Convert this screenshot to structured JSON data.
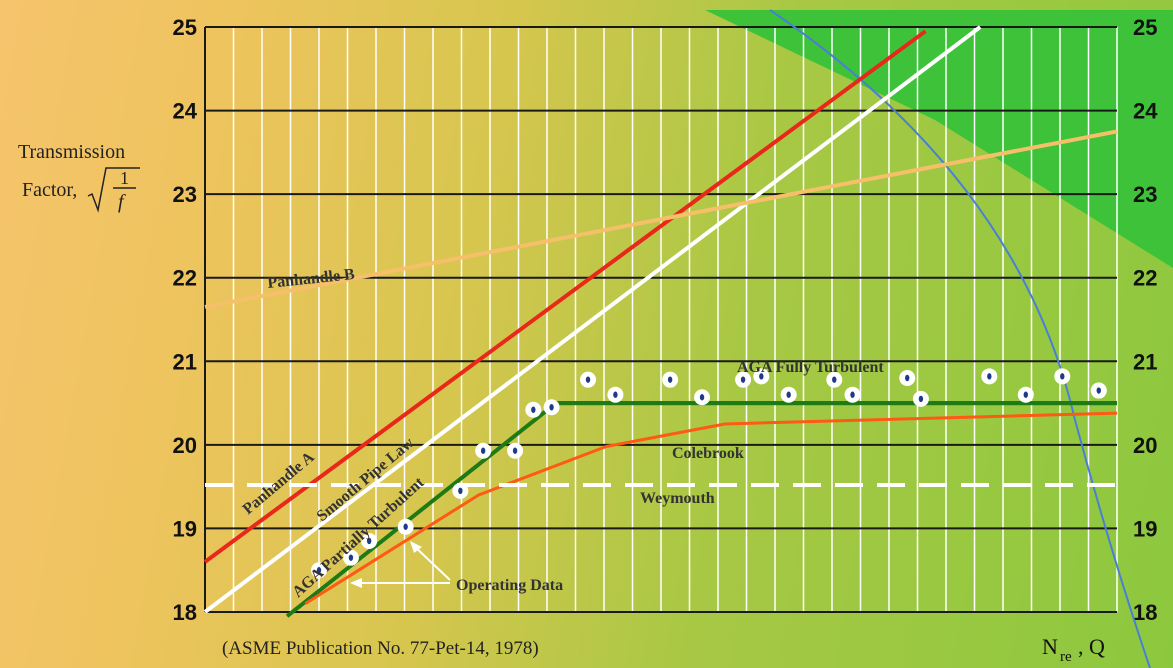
{
  "chart_data": {
    "type": "line",
    "title": "",
    "ylabel": "Transmission Factor, √(1/f)",
    "ylabel_parts": [
      "Transmission",
      "Factor,",
      "1",
      "f"
    ],
    "xlabel": "Nre, Q",
    "xlabel_parts": [
      "N",
      "re",
      ", Q"
    ],
    "source": "(ASME Publication No. 77-Pet-14, 1978)",
    "ylim": [
      18,
      25
    ],
    "xlim": [
      0,
      100
    ],
    "yticks": [
      "18",
      "19",
      "20",
      "21",
      "22",
      "23",
      "24",
      "25"
    ],
    "grid": true,
    "series": [
      {
        "name": "Panhandle A",
        "color": "#e8281a",
        "width": 4,
        "style": "solid",
        "points": [
          [
            0,
            18.6
          ],
          [
            79,
            24.95
          ]
        ]
      },
      {
        "name": "Smooth Pipe Law",
        "color": "#ffffff",
        "width": 4,
        "style": "solid",
        "points": [
          [
            0,
            18.0
          ],
          [
            85,
            25.0
          ]
        ]
      },
      {
        "name": "Panhandle B",
        "color": "#f6c06a",
        "width": 4,
        "style": "solid",
        "points": [
          [
            0,
            21.65
          ],
          [
            100,
            23.75
          ]
        ]
      },
      {
        "name": "AGA Partially Turbulent",
        "color": "#1e7a14",
        "width": 4,
        "style": "solid",
        "points": [
          [
            9,
            17.95
          ],
          [
            38.5,
            20.5
          ],
          [
            100,
            20.5
          ]
        ]
      },
      {
        "name": "AGA Fully Turbulent",
        "color": "#1e7a14",
        "width": 4,
        "style": "solid",
        "points": [
          [
            38.5,
            20.5
          ],
          [
            100,
            20.5
          ]
        ]
      },
      {
        "name": "Colebrook",
        "color": "#ff5a14",
        "width": 3,
        "style": "solid",
        "points": [
          [
            11,
            18.1
          ],
          [
            30,
            19.4
          ],
          [
            44,
            19.98
          ],
          [
            57,
            20.25
          ],
          [
            100,
            20.38
          ]
        ]
      },
      {
        "name": "Weymouth",
        "color": "#ffffff",
        "width": 4,
        "style": "dashed",
        "points": [
          [
            0,
            19.52
          ],
          [
            100,
            19.52
          ]
        ]
      }
    ],
    "operating_data": {
      "name": "Operating Data",
      "x": [
        12.5,
        16,
        18,
        22,
        28,
        30.5,
        34,
        36,
        38,
        42,
        45,
        51,
        54.5,
        59,
        61,
        64,
        69,
        71,
        77,
        78.5,
        86,
        90,
        94,
        98,
        98
      ],
      "y": [
        18.5,
        18.65,
        18.85,
        19.02,
        19.45,
        19.93,
        19.93,
        20.42,
        20.45,
        20.78,
        20.6,
        20.78,
        20.57,
        20.78,
        20.82,
        20.6,
        20.78,
        20.6,
        20.8,
        20.55,
        20.82,
        20.6,
        20.82,
        20.65,
        20.65
      ]
    },
    "labels": [
      "Panhandle A",
      "Smooth Pipe Law",
      "Panhandle B",
      "AGA Partially Turbulent",
      "AGA Fully Turbulent",
      "Colebrook",
      "Weymouth",
      "Operating Data"
    ]
  },
  "colors": {
    "grid_vertical": "#ffffff",
    "grid_horizontal": "#1a1a1a",
    "green_region": "#3ec23a",
    "curve_blue": "#4a7fd6",
    "marker_fill": "#ffffff",
    "marker_center": "#1f3a8a"
  }
}
